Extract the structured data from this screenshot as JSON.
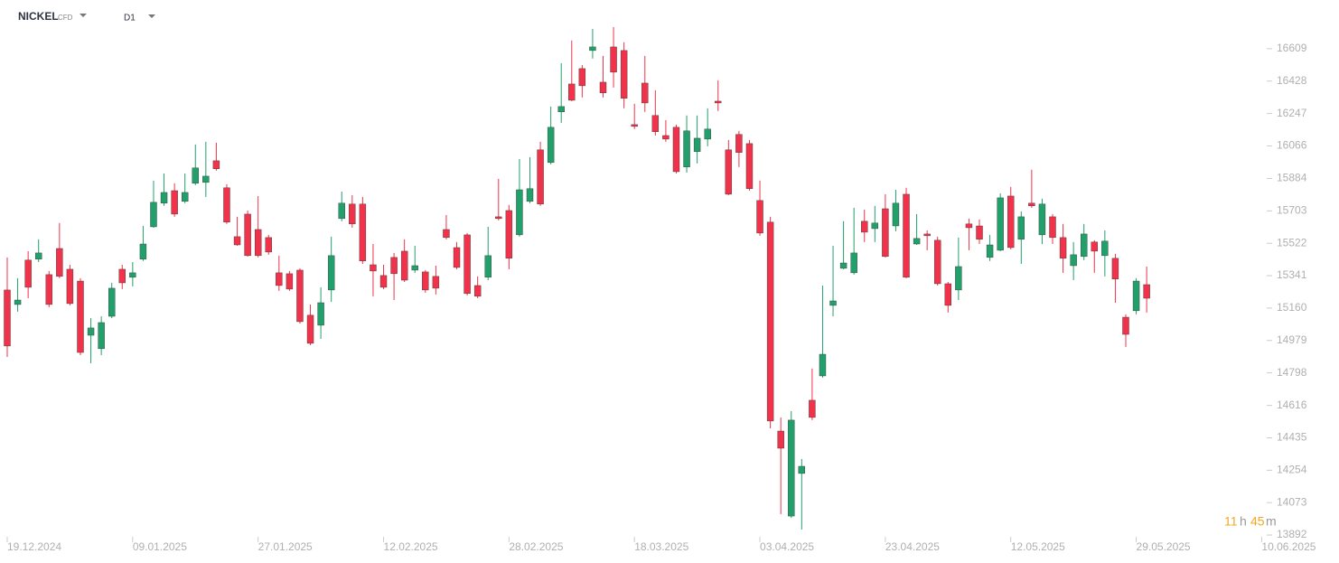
{
  "header": {
    "symbol": "NICKEL",
    "kind": "CFD",
    "timeframe": "D1"
  },
  "countdown": {
    "hours": "11",
    "hours_unit": "h",
    "minutes": "45",
    "minutes_unit": "m"
  },
  "chart_data": {
    "type": "candlestick",
    "up_color": "#22a06b",
    "down_color": "#f0334b",
    "categories": [
      "19.12.2024",
      null,
      null,
      null,
      null,
      null,
      null,
      null,
      null,
      null,
      null,
      null,
      "09.01.2025",
      null,
      null,
      null,
      null,
      null,
      null,
      null,
      null,
      null,
      null,
      null,
      "27.01.2025",
      null,
      null,
      null,
      null,
      null,
      null,
      null,
      null,
      null,
      null,
      null,
      "12.02.2025",
      null,
      null,
      null,
      null,
      null,
      null,
      null,
      null,
      null,
      null,
      null,
      "28.02.2025",
      null,
      null,
      null,
      null,
      null,
      null,
      null,
      null,
      null,
      null,
      null,
      "18.03.2025",
      null,
      null,
      null,
      null,
      null,
      null,
      null,
      null,
      null,
      null,
      null,
      "03.04.2025",
      null,
      null,
      null,
      null,
      null,
      null,
      null,
      null,
      null,
      null,
      null,
      "23.04.2025",
      null,
      null,
      null,
      null,
      null,
      null,
      null,
      null,
      null,
      null,
      null,
      "12.05.2025",
      null,
      null,
      null,
      null,
      null,
      null,
      null,
      null,
      null,
      null,
      null,
      "29.05.2025",
      null,
      null,
      null,
      null,
      null,
      null,
      null,
      null,
      null,
      null,
      null,
      "10.06.2025"
    ],
    "open": [
      15261,
      15180,
      15428,
      15433,
      15347,
      15493,
      15377,
      15311,
      15008,
      14933,
      15114,
      15377,
      15332,
      15433,
      15614,
      15746,
      15816,
      15756,
      15857,
      15862,
      15983,
      15832,
      15559,
      15685,
      15599,
      15554,
      15357,
      15352,
      15372,
      15120,
      15064,
      15261,
      15660,
      15741,
      15741,
      15402,
      15342,
      15443,
      15478,
      15372,
      15362,
      15337,
      15599,
      15498,
      15569,
      15286,
      15332,
      15670,
      15705,
      15569,
      15756,
      16044,
      15973,
      16256,
      16412,
      16498,
      16599,
      16422,
      16619,
      16599,
      16185,
      16417,
      16236,
      16124,
      16170,
      15948,
      16034,
      16104,
      16316,
      16044,
      16130,
      16079,
      15761,
      15640,
      14473,
      13998,
      14236,
      14645,
      14781,
      15175,
      15382,
      15357,
      15645,
      15604,
      15715,
      15619,
      15796,
      15518,
      15574,
      15539,
      15296,
      15261,
      15630,
      15619,
      15443,
      15483,
      15786,
      15544,
      15746,
      15569,
      15670,
      15554,
      15397,
      15448,
      15529,
      15453,
      15438,
      15109,
      15145,
      15291,
      null,
      null,
      null,
      null,
      null,
      null,
      null,
      null,
      null,
      null,
      null
    ],
    "high": [
      15443,
      15327,
      15478,
      15544,
      15367,
      15635,
      15402,
      15327,
      15104,
      15114,
      15301,
      15402,
      15417,
      15619,
      15872,
      15912,
      15857,
      15912,
      16074,
      16089,
      16084,
      15852,
      15670,
      15705,
      15786,
      15569,
      15453,
      15367,
      15382,
      15180,
      15276,
      15559,
      15811,
      15791,
      15781,
      15518,
      15402,
      15468,
      15544,
      15508,
      15372,
      15397,
      15680,
      15529,
      15579,
      15337,
      15614,
      15882,
      15736,
      15993,
      16003,
      16089,
      16286,
      16528,
      16655,
      16518,
      16720,
      16569,
      16730,
      16645,
      16301,
      16569,
      16377,
      16210,
      16185,
      16236,
      16236,
      16276,
      16433,
      16099,
      16150,
      16099,
      15872,
      15670,
      14549,
      14584,
      14317,
      14822,
      15286,
      15508,
      15645,
      15720,
      15710,
      15731,
      15796,
      15821,
      15832,
      15685,
      15594,
      15559,
      15306,
      15554,
      15660,
      15655,
      15569,
      15801,
      15837,
      15700,
      15933,
      15771,
      15685,
      15630,
      15529,
      15630,
      15539,
      15594,
      15463,
      15125,
      15327,
      15392,
      null,
      null,
      null,
      null,
      null,
      null,
      null,
      null,
      null,
      null,
      null
    ],
    "low": [
      14887,
      15140,
      15215,
      15417,
      15165,
      15327,
      15175,
      14897,
      14852,
      14897,
      15104,
      15266,
      15281,
      15423,
      15609,
      15731,
      15670,
      15746,
      15847,
      15781,
      15928,
      15630,
      15508,
      15448,
      15443,
      15458,
      15256,
      15256,
      15074,
      14953,
      14988,
      15195,
      15645,
      15609,
      15407,
      15226,
      15266,
      15205,
      15306,
      15357,
      15246,
      15236,
      15544,
      15377,
      15231,
      15215,
      15316,
      15650,
      15377,
      15559,
      15746,
      15731,
      15963,
      16195,
      16316,
      16337,
      16554,
      16337,
      16392,
      16276,
      16160,
      16256,
      16124,
      16089,
      15912,
      15917,
      15968,
      16064,
      16261,
      15791,
      15948,
      15816,
      15564,
      14488,
      14009,
      13988,
      13923,
      14534,
      14771,
      15114,
      15377,
      15347,
      15529,
      15529,
      15443,
      15589,
      15327,
      15513,
      15483,
      15286,
      15135,
      15205,
      15483,
      15518,
      15423,
      15478,
      15488,
      15407,
      15720,
      15518,
      15518,
      15357,
      15316,
      15428,
      15357,
      15337,
      15190,
      14943,
      15125,
      15135,
      null,
      null,
      null,
      null,
      null,
      null,
      null,
      null,
      null,
      null,
      null
    ],
    "close": [
      14948,
      15205,
      15276,
      15468,
      15180,
      15337,
      15185,
      14912,
      15049,
      15079,
      15271,
      15301,
      15357,
      15518,
      15751,
      15806,
      15685,
      15806,
      15943,
      15897,
      15938,
      15640,
      15513,
      15453,
      15453,
      15473,
      15286,
      15266,
      15084,
      14963,
      15190,
      15453,
      15746,
      15630,
      15423,
      15367,
      15276,
      15352,
      15316,
      15397,
      15261,
      15271,
      15554,
      15387,
      15241,
      15226,
      15453,
      15660,
      15438,
      15821,
      15827,
      15741,
      16170,
      16286,
      16321,
      16402,
      16619,
      16362,
      16478,
      16332,
      16175,
      16306,
      16145,
      16104,
      15922,
      16150,
      16109,
      16160,
      16306,
      15796,
      16029,
      15827,
      15579,
      14529,
      14377,
      14534,
      14276,
      14549,
      14902,
      15200,
      15412,
      15468,
      15584,
      15635,
      15448,
      15746,
      15332,
      15549,
      15564,
      15296,
      15175,
      15392,
      15609,
      15544,
      15513,
      15776,
      15498,
      15670,
      15731,
      15741,
      15554,
      15438,
      15458,
      15574,
      15478,
      15534,
      15322,
      15013,
      15311,
      15215,
      null,
      null,
      null,
      null,
      null,
      null,
      null,
      null,
      null,
      null,
      null
    ],
    "ylim": [
      13862,
      16760
    ],
    "yticks": [
      16609,
      16428,
      16247,
      16066,
      15884,
      15703,
      15522,
      15341,
      15160,
      14979,
      14798,
      14616,
      14435,
      14254,
      14073,
      13892
    ]
  }
}
